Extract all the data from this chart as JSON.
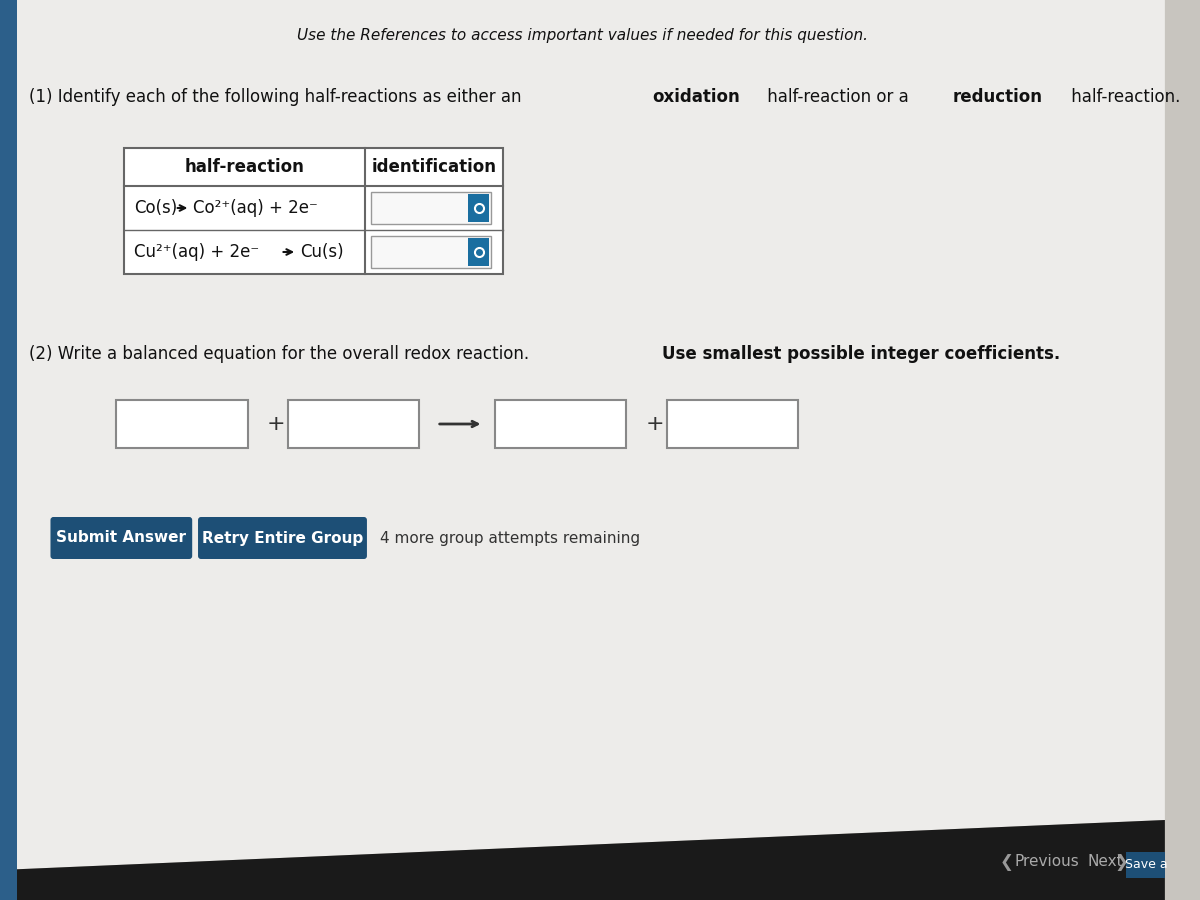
{
  "bg_color": "#c8c5bf",
  "page_bg": "#edecea",
  "title_text": "Use the References to access important values if needed for this question.",
  "table_header_col1": "half-reaction",
  "table_header_col2": "identification",
  "submit_btn_text": "Submit Answer",
  "retry_btn_text": "Retry Entire Group",
  "attempts_text": "4 more group attempts remaining",
  "btn_color": "#1d4f76",
  "btn_text_color": "#ffffff",
  "table_border_color": "#666666",
  "dropdown_color": "#1a6ea0",
  "left_bar_color": "#2c5f8a",
  "bottom_bar_color": "#1a1a1a",
  "bottom_bar_bg": "#b0ada8",
  "arrow_color": "#333333",
  "font_color": "#111111",
  "previous_text": "Previous",
  "next_text": "Next",
  "save_text": "Save a"
}
